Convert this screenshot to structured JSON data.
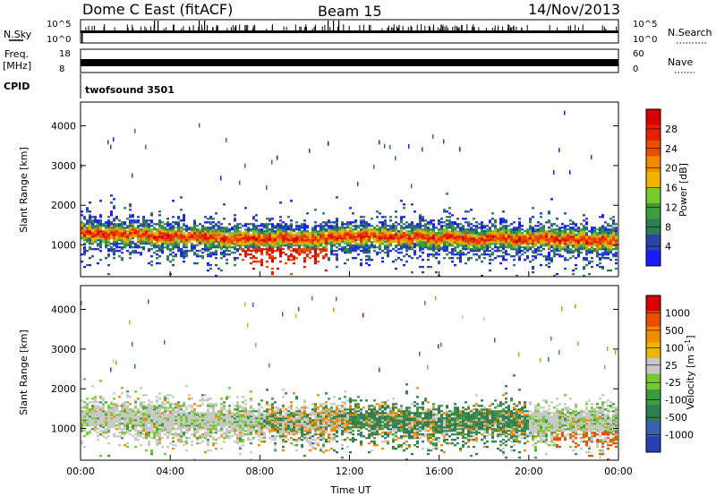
{
  "header": {
    "title": "Dome C East (fitACF)",
    "beam": "Beam 15",
    "date": "14/Nov/2013"
  },
  "status_panels": {
    "nsky_label": "N.Sky",
    "nsearch_label": "N.Search",
    "nsky_ticks": [
      "10^5",
      "10^0"
    ],
    "nsearch_ticks": [
      "10^5",
      "10^0"
    ],
    "freq_label_1": "Freq.",
    "freq_label_2": "[MHz]",
    "freq_ticks": [
      "18",
      "8"
    ],
    "nave_label": "Nave",
    "nave_ticks": [
      "60",
      "0"
    ],
    "cpid_label": "CPID",
    "cpid_text": "twofsound 3501"
  },
  "colors": {
    "power": [
      "#1a1aff",
      "#2a45a8",
      "#2e7d55",
      "#3d9a3d",
      "#78c832",
      "#f0b400",
      "#f08c00",
      "#e85000",
      "#e82000",
      "#d80000"
    ],
    "velocity": [
      "#2a40b0",
      "#3a60b0",
      "#2e7d55",
      "#3d9a3d",
      "#78c832",
      "#c8c8c8",
      "#f0b400",
      "#f08c00",
      "#e85000",
      "#d80000"
    ]
  },
  "chart_data": [
    {
      "type": "heatmap",
      "name": "power-panel",
      "ylabel": "Slant Range [km]",
      "ylim": [
        200,
        4600
      ],
      "y_ticks": [
        1000,
        2000,
        3000,
        4000
      ],
      "x_ticks": [
        "00:00",
        "04:00",
        "08:00",
        "12:00",
        "16:00",
        "20:00",
        "00:00"
      ],
      "colorbar": {
        "label": "Power [dB]",
        "ticks": [
          "28",
          "24",
          "20",
          "16",
          "12",
          "8",
          "4"
        ]
      },
      "band_centers_km": [
        1300,
        1200,
        1150,
        1100,
        1200,
        1150,
        1100
      ],
      "band_times_hr": [
        0,
        4,
        8,
        10,
        12,
        16,
        24
      ]
    },
    {
      "type": "heatmap",
      "name": "velocity-panel",
      "ylabel": "Slant Range [km]",
      "xlabel": "Time UT",
      "ylim": [
        200,
        4600
      ],
      "y_ticks": [
        1000,
        2000,
        3000,
        4000
      ],
      "x_ticks": [
        "00:00",
        "04:00",
        "08:00",
        "12:00",
        "16:00",
        "20:00",
        "00:00"
      ],
      "colorbar": {
        "label": "Velocity [m s^-1]",
        "ticks": [
          "1000",
          "500",
          "100",
          "25",
          "-25",
          "-100",
          "-500",
          "-1000"
        ]
      }
    }
  ]
}
